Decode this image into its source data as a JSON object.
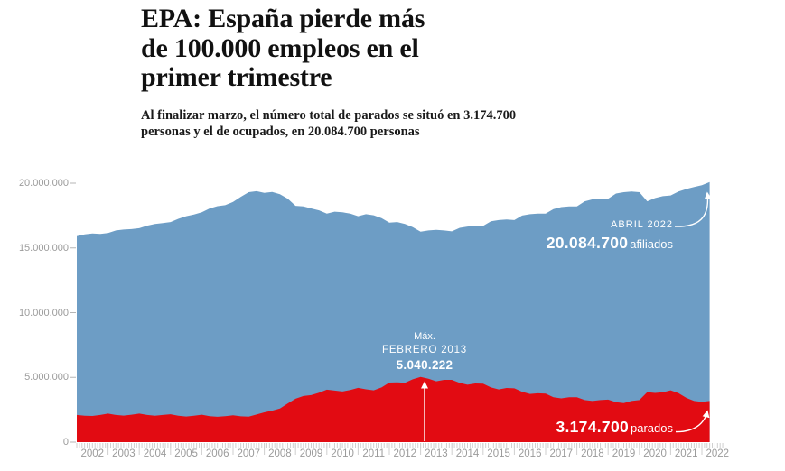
{
  "header": {
    "title": "EPA: España pierde más\nde 100.000 empleos en el\nprimer trimestre",
    "subtitle": "Al finalizar marzo, el número total de parados se situó en 3.174.700\npersonas y el de ocupados, en 20.084.700 personas"
  },
  "annotations": {
    "afiliados": {
      "date_label": "ABRIL 2022",
      "value": "20.084.700",
      "unit": "afiliados"
    },
    "max": {
      "label": "Máx.",
      "date_label": "FEBRERO 2013",
      "value": "5.040.222"
    },
    "parados": {
      "value": "3.174.700",
      "unit": "parados"
    }
  },
  "colors": {
    "afiliados": "#6d9dc5",
    "parados": "#e20b12",
    "axis_text": "#9b9b9b",
    "tick": "#cfcfcf",
    "y_dash": "#b5b5b5",
    "annotation_text": "#ffffff"
  },
  "chart_data": {
    "type": "area",
    "title": "",
    "xlabel": "",
    "ylabel": "",
    "unit": "millions of persons",
    "x_start": 2002.0,
    "x_step": 0.25,
    "xlim": [
      2002.0,
      2022.33
    ],
    "ylim": [
      0,
      20000000
    ],
    "grid": false,
    "legend_position": "none",
    "x_years": [
      2002,
      2003,
      2004,
      2005,
      2006,
      2007,
      2008,
      2009,
      2010,
      2011,
      2012,
      2013,
      2014,
      2015,
      2016,
      2017,
      2018,
      2019,
      2020,
      2021,
      2022
    ],
    "y_ticks": {
      "labels": [
        "20.000.000",
        "15.000.000",
        "10.000.000",
        "5.000.000",
        "0"
      ],
      "values": [
        20,
        15,
        10,
        5,
        0
      ]
    },
    "series": [
      {
        "name": "afiliados",
        "label": "afiliados",
        "last_point": {
          "label": "ABRIL 2022",
          "value": 20084700
        },
        "values": [
          15.9,
          16.05,
          16.12,
          16.08,
          16.15,
          16.35,
          16.42,
          16.45,
          16.52,
          16.72,
          16.85,
          16.92,
          17.0,
          17.25,
          17.45,
          17.58,
          17.75,
          18.05,
          18.22,
          18.3,
          18.55,
          18.95,
          19.3,
          19.38,
          19.25,
          19.32,
          19.15,
          18.8,
          18.25,
          18.2,
          18.05,
          17.9,
          17.65,
          17.8,
          17.75,
          17.65,
          17.45,
          17.6,
          17.52,
          17.3,
          16.95,
          17.0,
          16.85,
          16.6,
          16.25,
          16.35,
          16.4,
          16.35,
          16.28,
          16.55,
          16.65,
          16.7,
          16.7,
          17.05,
          17.15,
          17.2,
          17.15,
          17.5,
          17.6,
          17.65,
          17.65,
          18.0,
          18.15,
          18.2,
          18.2,
          18.6,
          18.75,
          18.8,
          18.8,
          19.2,
          19.3,
          19.35,
          19.3,
          18.6,
          18.85,
          19.0,
          19.05,
          19.35,
          19.55,
          19.7,
          19.85,
          20.0847
        ]
      },
      {
        "name": "parados",
        "label": "parados",
        "max_point": {
          "label": "FEBRERO 2013",
          "value": 5040222
        },
        "last_point": {
          "label": "ABRIL 2022",
          "value": 3174700
        },
        "values": [
          2.1,
          2.04,
          2.02,
          2.1,
          2.2,
          2.1,
          2.05,
          2.12,
          2.2,
          2.1,
          2.04,
          2.1,
          2.15,
          2.04,
          1.98,
          2.04,
          2.12,
          2.01,
          1.96,
          2.0,
          2.07,
          1.99,
          1.97,
          2.13,
          2.3,
          2.43,
          2.6,
          2.99,
          3.35,
          3.56,
          3.63,
          3.81,
          4.05,
          3.98,
          3.91,
          4.02,
          4.19,
          4.08,
          4.0,
          4.22,
          4.6,
          4.62,
          4.58,
          4.85,
          5.04,
          4.89,
          4.7,
          4.81,
          4.81,
          4.57,
          4.43,
          4.53,
          4.51,
          4.22,
          4.07,
          4.18,
          4.15,
          3.89,
          3.72,
          3.77,
          3.75,
          3.46,
          3.38,
          3.47,
          3.46,
          3.25,
          3.18,
          3.25,
          3.28,
          3.08,
          3.02,
          3.18,
          3.25,
          3.86,
          3.8,
          3.85,
          4.0,
          3.78,
          3.42,
          3.18,
          3.11,
          3.1747
        ]
      }
    ]
  }
}
